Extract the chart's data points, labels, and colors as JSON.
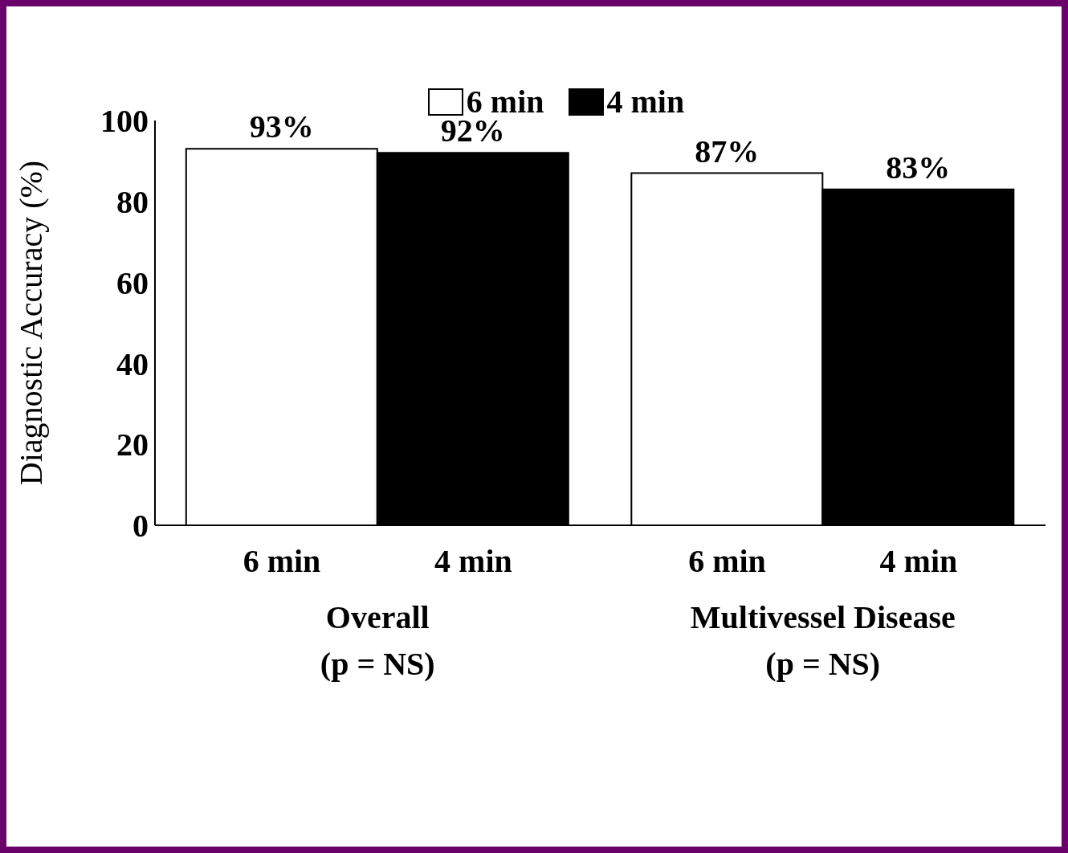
{
  "chart_data": {
    "type": "bar",
    "ylabel": "Diagnostic Accuracy (%)",
    "categories": [
      "Overall\n(p = NS)",
      "Multivessel Disease\n(p = NS)"
    ],
    "series": [
      {
        "name": "6 min",
        "color": "#ffffff",
        "values": [
          93,
          87
        ],
        "value_labels": [
          "93%",
          "87%"
        ]
      },
      {
        "name": "4 min",
        "color": "#000000",
        "values": [
          92,
          83
        ],
        "value_labels": [
          "92%",
          "83%"
        ]
      }
    ],
    "ylim": [
      0,
      100
    ],
    "yticks": [
      0,
      20,
      40,
      60,
      80,
      100
    ],
    "grid": false,
    "legend": "top"
  }
}
